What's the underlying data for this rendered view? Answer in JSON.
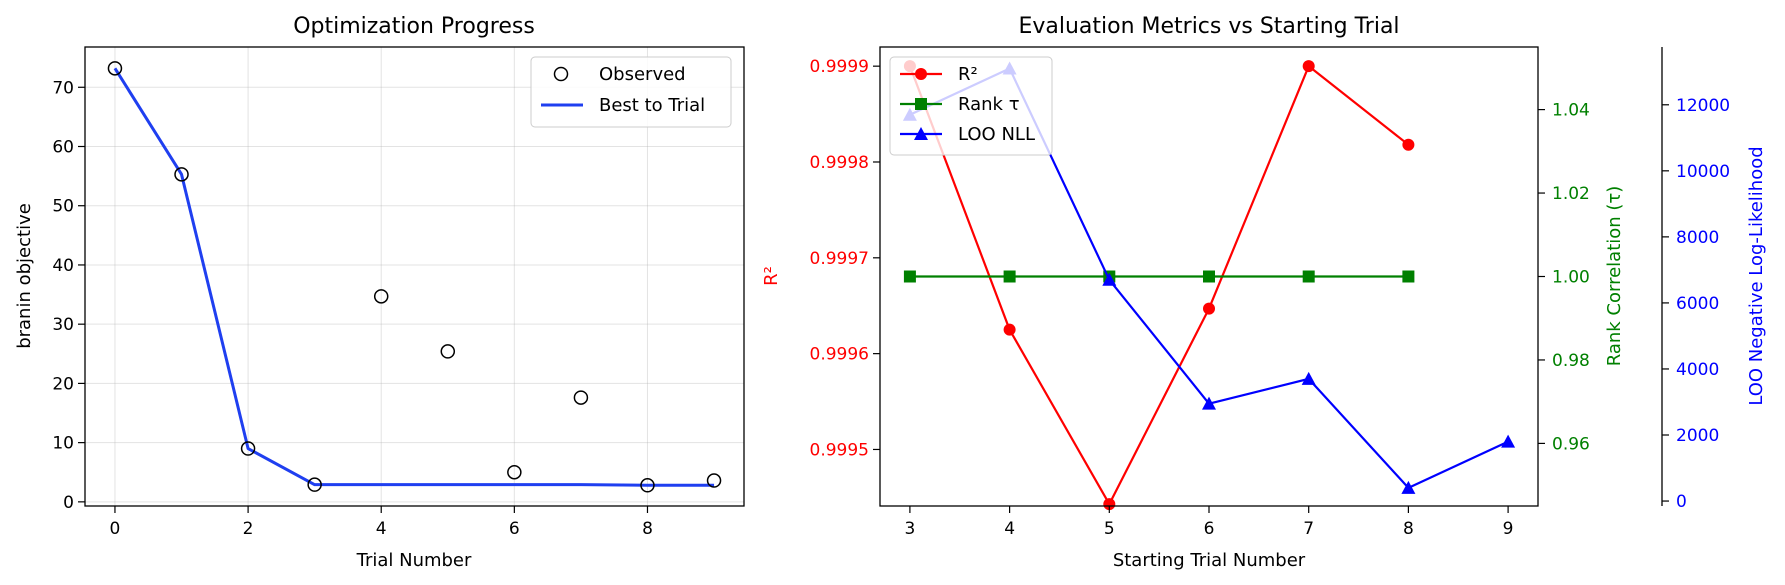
{
  "chart_data": [
    {
      "type": "scatter",
      "title": "Optimization Progress",
      "xlabel": "Trial Number",
      "ylabel": "branin objective",
      "xlim": [
        -0.45,
        9.45
      ],
      "ylim": [
        -0.7,
        76.8
      ],
      "xticks": [
        0,
        2,
        4,
        6,
        8
      ],
      "xtick_labels": [
        "0",
        "2",
        "4",
        "6",
        "8"
      ],
      "yticks": [
        0,
        10,
        20,
        30,
        40,
        50,
        60,
        70
      ],
      "ytick_labels": [
        "0",
        "10",
        "20",
        "30",
        "40",
        "50",
        "60",
        "70"
      ],
      "grid": true,
      "legend_position": "top-right",
      "series": [
        {
          "name": "Observed",
          "kind": "scatter-hollow",
          "color": "#000000",
          "x": [
            0,
            1,
            2,
            3,
            4,
            5,
            6,
            7,
            8,
            9
          ],
          "y": [
            73.2,
            55.3,
            9.0,
            2.9,
            34.7,
            25.4,
            5.0,
            17.6,
            2.8,
            3.6
          ]
        },
        {
          "name": "Best to Trial",
          "kind": "line",
          "color": "#1f3ff0",
          "x": [
            0,
            1,
            2,
            3,
            4,
            5,
            6,
            7,
            8,
            9
          ],
          "y": [
            73.2,
            55.3,
            9.0,
            2.9,
            2.9,
            2.9,
            2.9,
            2.9,
            2.8,
            2.8
          ]
        }
      ]
    },
    {
      "type": "line",
      "title": "Evaluation Metrics vs Starting Trial",
      "xlabel": "Starting Trial Number",
      "x": [
        3,
        4,
        5,
        6,
        7,
        8,
        9
      ],
      "xlim": [
        2.7,
        9.3
      ],
      "xticks": [
        3,
        4,
        5,
        6,
        7,
        8,
        9
      ],
      "xtick_labels": [
        "3",
        "4",
        "5",
        "6",
        "7",
        "8",
        "9"
      ],
      "legend_position": "top-left",
      "axes": [
        {
          "id": "r2",
          "side": "left",
          "label": "R²",
          "color": "#ff0000",
          "lim": [
            0.999441,
            0.99992
          ],
          "ticks": [
            0.9995,
            0.9996,
            0.9997,
            0.9998,
            0.9999
          ],
          "tick_labels": [
            "0.9995",
            "0.9996",
            "0.9997",
            "0.9998",
            "0.9999"
          ]
        },
        {
          "id": "tau",
          "side": "right",
          "label": "Rank Correlation (τ)",
          "color": "#008000",
          "lim": [
            0.945,
            1.055
          ],
          "ticks": [
            0.96,
            0.98,
            1.0,
            1.02,
            1.04
          ],
          "tick_labels": [
            "0.96",
            "0.98",
            "1.00",
            "1.02",
            "1.04"
          ]
        },
        {
          "id": "nll",
          "side": "right-outer",
          "label": "LOO Negative Log-Likelihood",
          "color": "#0000ff",
          "lim": [
            -150,
            13750
          ],
          "ticks": [
            0,
            2000,
            4000,
            6000,
            8000,
            10000,
            12000
          ],
          "tick_labels": [
            "0",
            "2000",
            "4000",
            "6000",
            "8000",
            "10000",
            "12000"
          ]
        }
      ],
      "series": [
        {
          "name": "R²",
          "axis": "r2",
          "marker": "circle",
          "color": "#ff0000",
          "x": [
            3,
            4,
            5,
            6,
            7,
            8
          ],
          "y": [
            0.9999,
            0.999625,
            0.999443,
            0.999647,
            0.9999,
            0.999818
          ]
        },
        {
          "name": "Rank τ",
          "axis": "tau",
          "marker": "square",
          "color": "#008000",
          "x": [
            3,
            4,
            5,
            6,
            7,
            8
          ],
          "y": [
            1.0,
            1.0,
            1.0,
            1.0,
            1.0,
            1.0
          ]
        },
        {
          "name": "LOO NLL",
          "axis": "nll",
          "marker": "triangle",
          "color": "#0000ff",
          "x": [
            3,
            4,
            5,
            6,
            7,
            8,
            9
          ],
          "y": [
            11700,
            13100,
            6700,
            2950,
            3700,
            400,
            1800
          ]
        }
      ]
    }
  ]
}
